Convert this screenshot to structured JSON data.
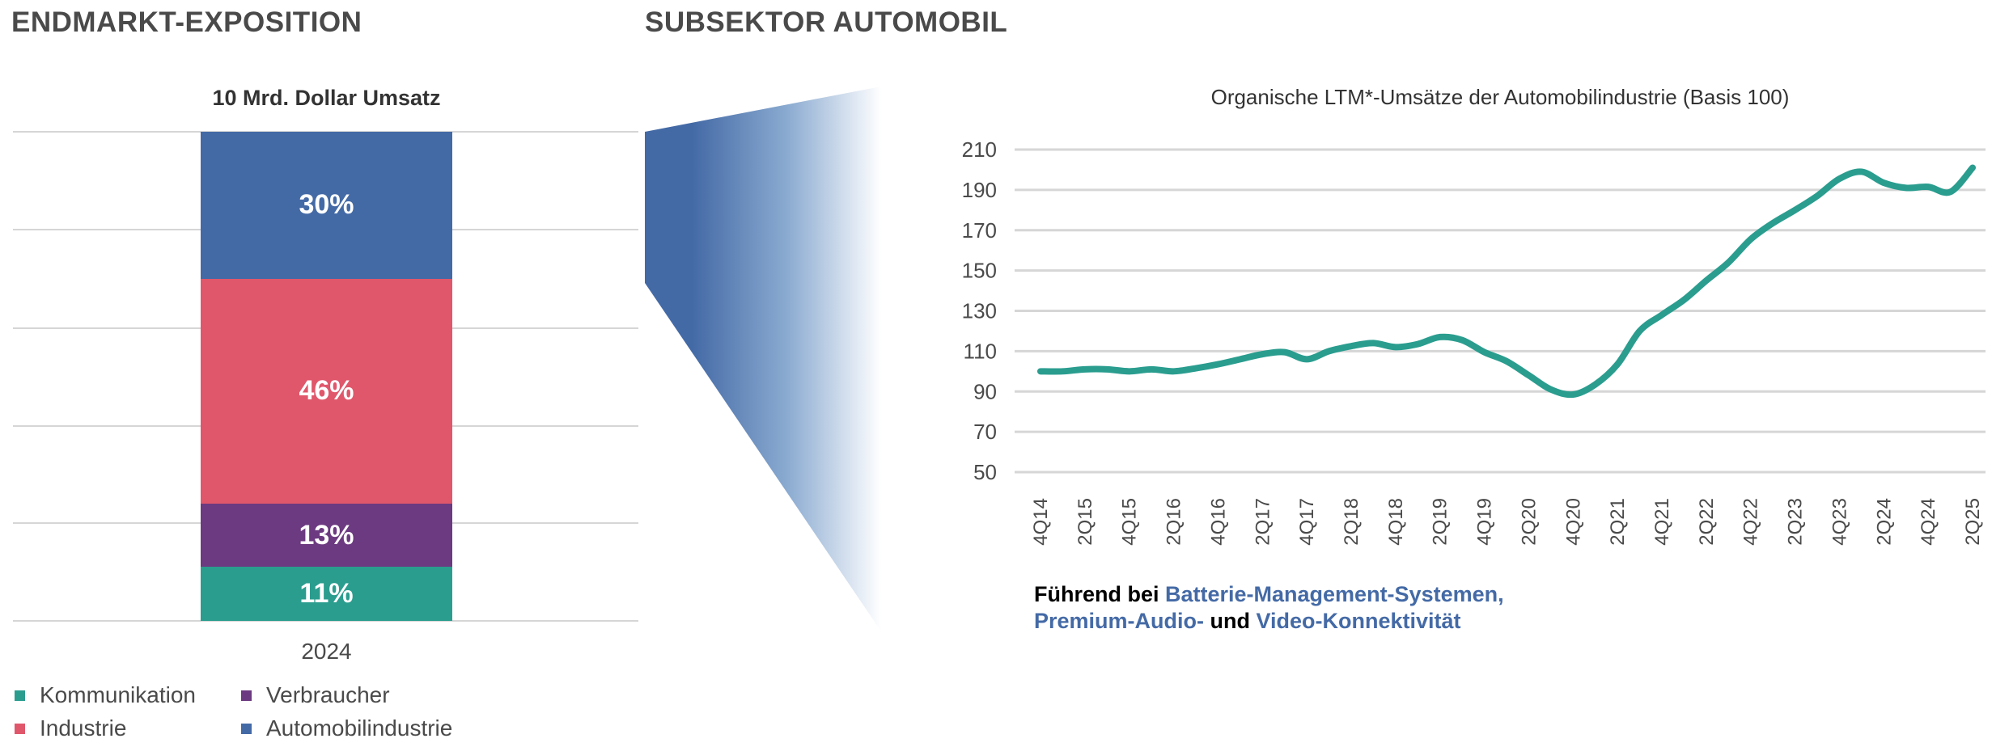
{
  "left": {
    "heading": "ENDMARKT-EXPOSITION",
    "chart_title": "10 Mrd. Dollar Umsatz",
    "category": "2024",
    "segments": [
      {
        "name": "Automobilindustrie",
        "value": 30,
        "label": "30%",
        "color": "#446aa6"
      },
      {
        "name": "Industrie",
        "value": 46,
        "label": "46%",
        "color": "#e0576b"
      },
      {
        "name": "Verbraucher",
        "value": 13,
        "label": "13%",
        "color": "#6c3a80"
      },
      {
        "name": "Kommunikation",
        "value": 11,
        "label": "11%",
        "color": "#2a9d8f"
      }
    ],
    "legend": [
      {
        "label": "Kommunikation",
        "color": "#2a9d8f"
      },
      {
        "label": "Verbraucher",
        "color": "#6c3a80"
      },
      {
        "label": "Industrie",
        "color": "#e0576b"
      },
      {
        "label": "Automobilindustrie",
        "color": "#446aa6"
      }
    ]
  },
  "right": {
    "heading": "SUBSEKTOR AUTOMOBIL",
    "footnote": {
      "part1": "Führend bei ",
      "part2": "Batterie-Management-Systemen,",
      "part3": "Premium-Audio-",
      "part4": " und ",
      "part5": "Video-Konnektivität"
    }
  },
  "chart_data": [
    {
      "type": "bar",
      "stacked": true,
      "title": "10 Mrd. Dollar Umsatz",
      "categories": [
        "2024"
      ],
      "series": [
        {
          "name": "Kommunikation",
          "values": [
            11
          ]
        },
        {
          "name": "Verbraucher",
          "values": [
            13
          ]
        },
        {
          "name": "Industrie",
          "values": [
            46
          ]
        },
        {
          "name": "Automobilindustrie",
          "values": [
            30
          ]
        }
      ],
      "ylim": [
        0,
        100
      ],
      "legend": "bottom-left"
    },
    {
      "type": "line",
      "title": "Organische LTM*-Umsätze der Automobilindustrie (Basis 100)",
      "color": "#2a9d8f",
      "ylim": [
        50,
        210
      ],
      "yticks": [
        "50",
        "70",
        "90",
        "110",
        "130",
        "150",
        "170",
        "190",
        "210"
      ],
      "xticks": [
        "4Q14",
        "2Q15",
        "4Q15",
        "2Q16",
        "4Q16",
        "2Q17",
        "4Q17",
        "2Q18",
        "4Q18",
        "2Q19",
        "4Q19",
        "2Q20",
        "4Q20",
        "2Q21",
        "4Q21",
        "2Q22",
        "4Q22",
        "2Q23",
        "4Q23",
        "2Q24",
        "4Q24",
        "2Q25"
      ],
      "x": [
        "4Q14",
        "1Q15",
        "2Q15",
        "3Q15",
        "4Q15",
        "1Q16",
        "2Q16",
        "3Q16",
        "4Q16",
        "1Q17",
        "2Q17",
        "3Q17",
        "4Q17",
        "1Q18",
        "2Q18",
        "3Q18",
        "4Q18",
        "1Q19",
        "2Q19",
        "3Q19",
        "4Q19",
        "1Q20",
        "2Q20",
        "3Q20",
        "4Q20",
        "1Q21",
        "2Q21",
        "3Q21",
        "4Q21",
        "1Q22",
        "2Q22",
        "3Q22",
        "4Q22",
        "1Q23",
        "2Q23",
        "3Q23",
        "4Q23",
        "1Q24",
        "2Q24",
        "3Q24",
        "4Q24",
        "1Q25",
        "2Q25"
      ],
      "values": [
        100,
        100,
        101,
        101,
        100,
        101,
        100,
        101.5,
        103.5,
        106,
        108.5,
        109.5,
        106,
        110,
        112.5,
        114,
        112,
        113.5,
        117,
        115.5,
        109.5,
        105,
        98,
        91,
        88.5,
        93.5,
        103.5,
        120,
        128,
        135.5,
        145,
        154,
        165.5,
        173.5,
        180,
        187,
        195.5,
        199,
        193.5,
        191,
        191.5,
        189,
        201
      ],
      "grid": true
    }
  ]
}
